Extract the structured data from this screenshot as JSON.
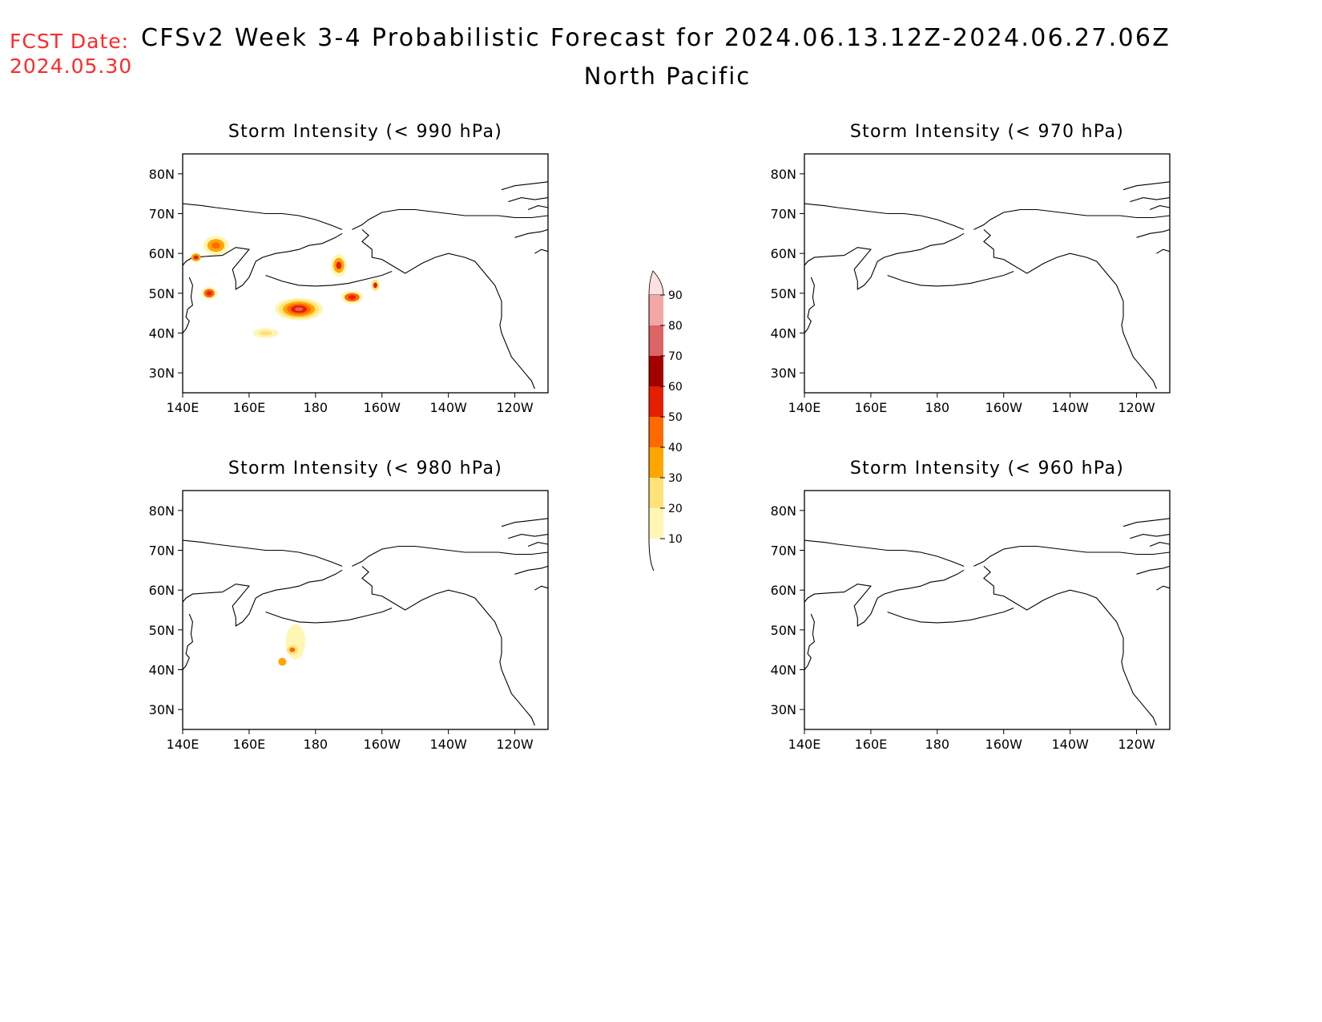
{
  "header": {
    "fcst_label": "FCST Date:",
    "fcst_date": "2024.05.30",
    "title": "CFSv2 Week 3-4 Probabilistic Forecast for 2024.06.13.12Z-2024.06.27.06Z",
    "region": "North Pacific"
  },
  "panels": [
    {
      "id": "p990",
      "title": "Storm Intensity (< 990 hPa)"
    },
    {
      "id": "p970",
      "title": "Storm Intensity (< 970 hPa)"
    },
    {
      "id": "p980",
      "title": "Storm Intensity (< 980 hPa)"
    },
    {
      "id": "p960",
      "title": "Storm Intensity (< 960 hPa)"
    }
  ],
  "axes": {
    "lat_labels": [
      "80N",
      "70N",
      "60N",
      "50N",
      "40N",
      "30N"
    ],
    "lon_labels": [
      "140E",
      "160E",
      "180",
      "160W",
      "140W",
      "120W"
    ]
  },
  "colorbar": {
    "labels": [
      "90",
      "80",
      "70",
      "60",
      "50",
      "40",
      "30",
      "20",
      "10"
    ],
    "colors": [
      "#fff6b3",
      "#ffe37a",
      "#ffa500",
      "#ff6a00",
      "#e61e00",
      "#a30000",
      "#dd6464",
      "#f4a6a6",
      "#fde1e1"
    ]
  }
}
